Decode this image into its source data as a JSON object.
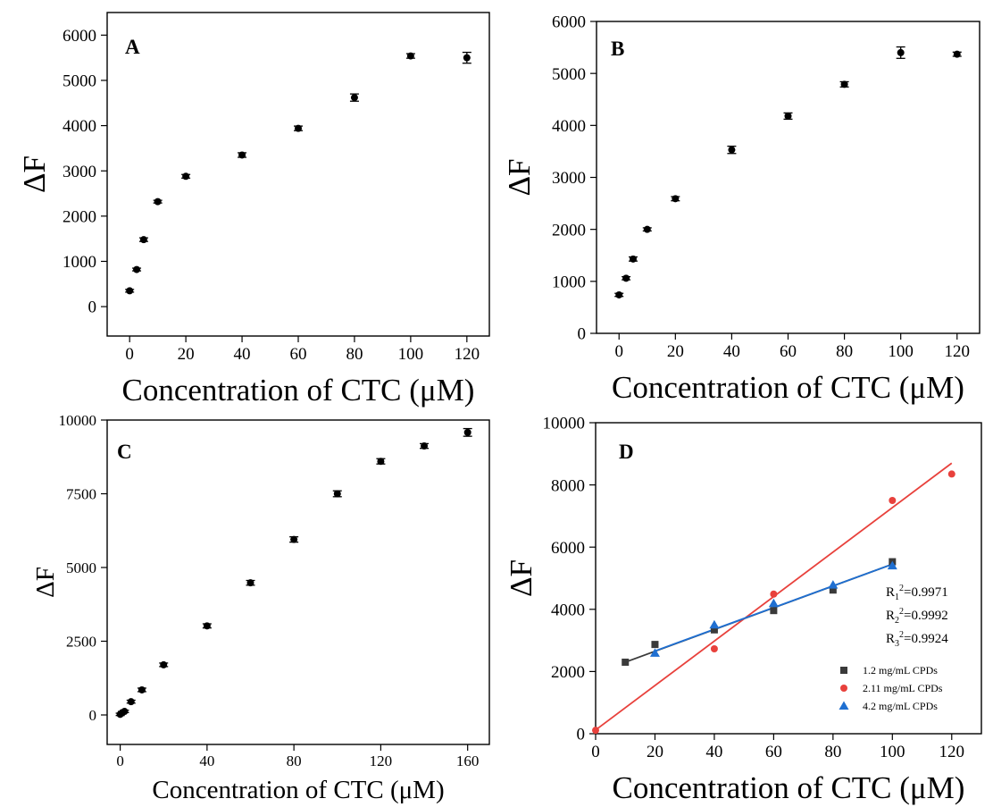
{
  "chart_data": [
    {
      "type": "scatter",
      "panel_label": "A",
      "xlabel": "Concentration of CTC (μM)",
      "ylabel": "ΔF",
      "xlim": [
        -8,
        128
      ],
      "ylim": [
        -650,
        6500
      ],
      "xticks": [
        0,
        20,
        40,
        60,
        80,
        100,
        120
      ],
      "yticks": [
        0,
        1000,
        2000,
        3000,
        4000,
        5000,
        6000
      ],
      "series": [
        {
          "color": "#000000",
          "marker": "circle",
          "x": [
            0,
            2.5,
            5,
            10,
            20,
            40,
            60,
            80,
            100,
            120
          ],
          "y": [
            350,
            820,
            1480,
            2320,
            2880,
            3350,
            3940,
            4620,
            5540,
            5500
          ],
          "err": [
            30,
            30,
            40,
            30,
            40,
            50,
            50,
            80,
            50,
            120
          ]
        }
      ]
    },
    {
      "type": "scatter",
      "panel_label": "B",
      "xlabel": "Concentration of CTC (μM)",
      "ylabel": "ΔF",
      "xlim": [
        -8,
        128
      ],
      "ylim": [
        0,
        6000
      ],
      "xticks": [
        0,
        20,
        40,
        60,
        80,
        100,
        120
      ],
      "yticks": [
        0,
        1000,
        2000,
        3000,
        4000,
        5000,
        6000
      ],
      "series": [
        {
          "color": "#000000",
          "marker": "circle",
          "x": [
            0,
            2.5,
            5,
            10,
            20,
            40,
            60,
            80,
            100,
            120
          ],
          "y": [
            740,
            1060,
            1430,
            2000,
            2590,
            3530,
            4180,
            4790,
            5400,
            5370
          ],
          "err": [
            30,
            30,
            40,
            30,
            40,
            70,
            60,
            50,
            110,
            40
          ]
        }
      ]
    },
    {
      "type": "scatter",
      "panel_label": "C",
      "xlabel": "Concentration of CTC (μM)",
      "ylabel": "ΔF",
      "xlim": [
        -6,
        170
      ],
      "ylim": [
        -1000,
        10000
      ],
      "xticks": [
        0,
        40,
        80,
        120,
        160
      ],
      "yticks": [
        0,
        2500,
        5000,
        7500,
        10000
      ],
      "series": [
        {
          "color": "#000000",
          "marker": "circle",
          "x": [
            0,
            1,
            2,
            5,
            10,
            20,
            40,
            60,
            80,
            100,
            120,
            140,
            160
          ],
          "y": [
            20,
            80,
            120,
            450,
            850,
            1700,
            3020,
            4480,
            5950,
            7500,
            8600,
            9120,
            9580
          ],
          "err": [
            40,
            40,
            40,
            50,
            60,
            60,
            70,
            80,
            90,
            100,
            90,
            80,
            130
          ]
        }
      ]
    },
    {
      "type": "scatter",
      "panel_label": "D",
      "xlabel": "Concentration of CTC (μM)",
      "ylabel": "ΔF",
      "xlim": [
        0,
        130
      ],
      "ylim": [
        0,
        10000
      ],
      "xticks": [
        0,
        20,
        40,
        60,
        80,
        100,
        120
      ],
      "yticks": [
        0,
        2000,
        4000,
        6000,
        8000,
        10000
      ],
      "annotations": [
        "R₁²=0.9971",
        "R₂²=0.9992",
        "R₃²=0.9924"
      ],
      "annotation_parts": [
        {
          "base": "R",
          "sub": "1",
          "sup": "2",
          "rest": "=0.9971"
        },
        {
          "base": "R",
          "sub": "2",
          "sup": "2",
          "rest": "=0.9992"
        },
        {
          "base": "R",
          "sub": "3",
          "sup": "2",
          "rest": "=0.9924"
        }
      ],
      "legend_position": "bottom-right",
      "series": [
        {
          "name": "1.2 mg/mL CPDs",
          "color": "#3a3a3a",
          "marker": "square",
          "x": [
            10,
            20,
            40,
            60,
            80,
            100
          ],
          "y": [
            2300,
            2870,
            3340,
            3960,
            4620,
            5530
          ],
          "fit": [
            [
              10,
              2300
            ],
            [
              100,
              5450
            ]
          ]
        },
        {
          "name": "2.11 mg/mL CPDs",
          "color": "#e8413c",
          "marker": "circle",
          "x": [
            0,
            40,
            60,
            100,
            120
          ],
          "y": [
            110,
            2730,
            4490,
            7500,
            8350
          ],
          "fit": [
            [
              0,
              120
            ],
            [
              120,
              8700
            ]
          ]
        },
        {
          "name": "4.2 mg/mL CPDs",
          "color": "#1f6fd1",
          "marker": "triangle",
          "x": [
            20,
            40,
            60,
            80,
            100
          ],
          "y": [
            2590,
            3500,
            4190,
            4780,
            5400
          ],
          "fit": [
            [
              20,
              2660
            ],
            [
              100,
              5450
            ]
          ]
        }
      ]
    }
  ]
}
